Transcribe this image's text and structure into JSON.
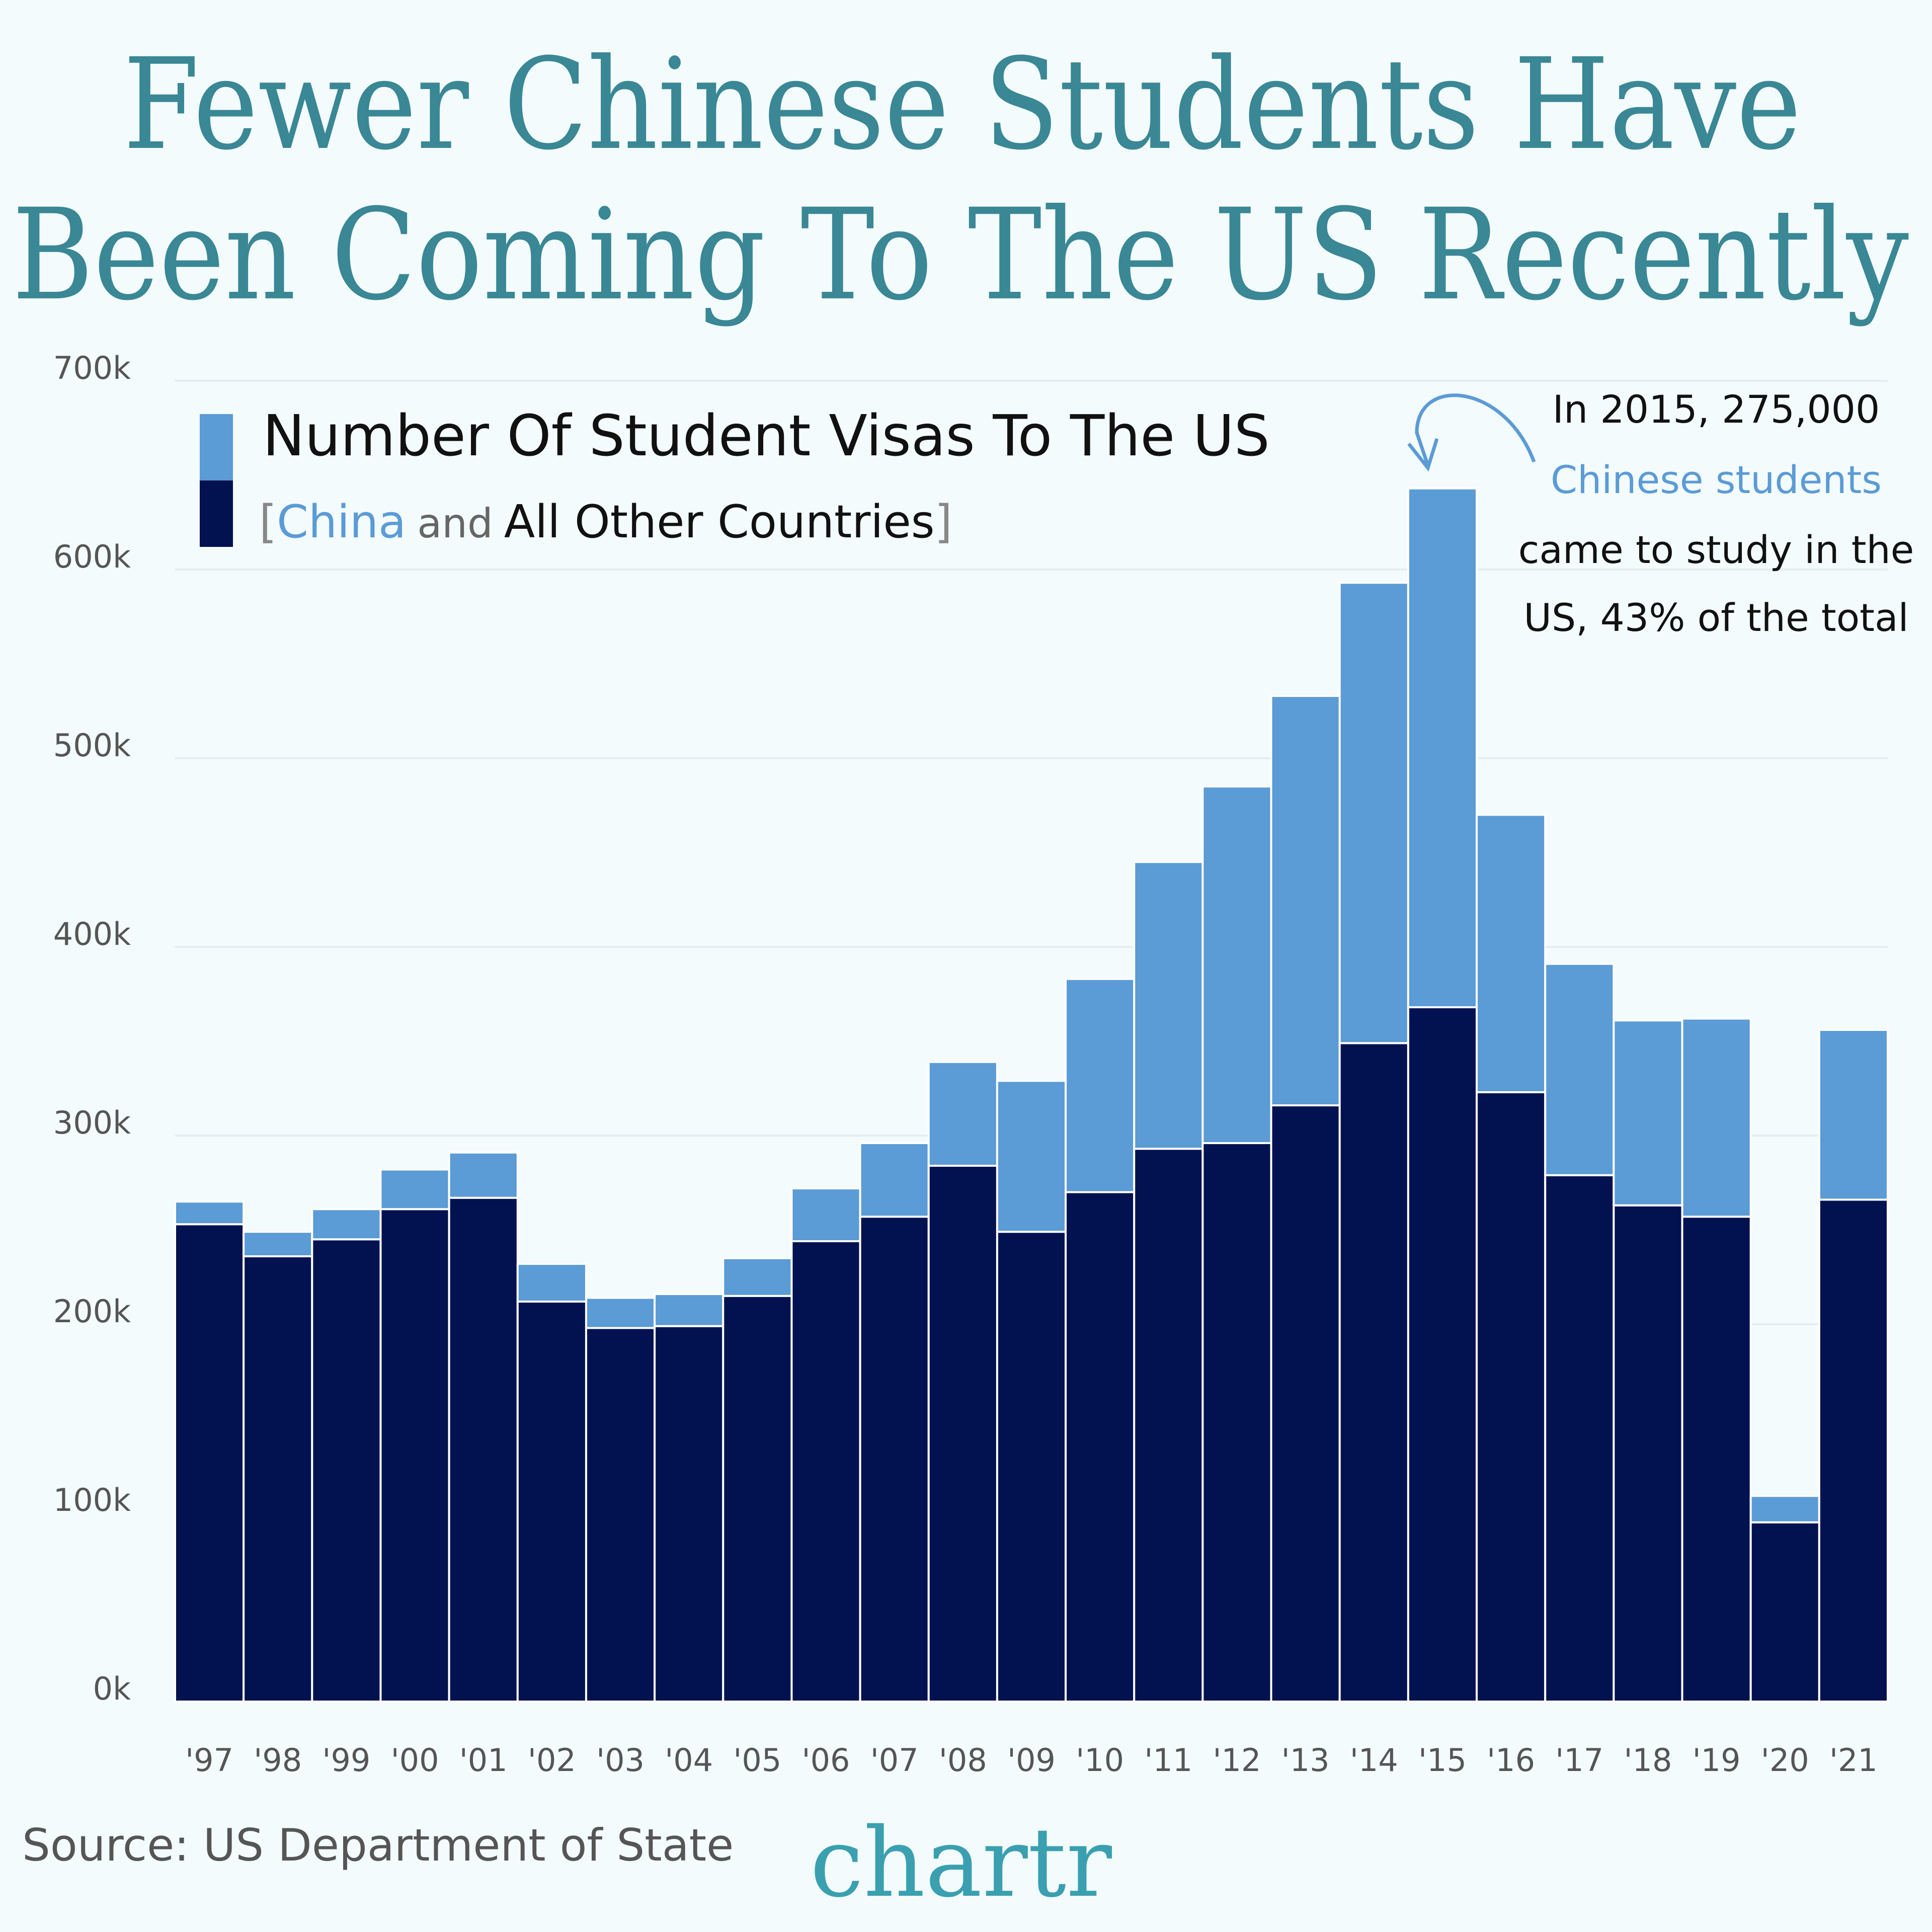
{
  "chart_data": {
    "type": "stacked-bar",
    "title": [
      "Fewer Chinese Students Have",
      "Been Coming To The US Recently"
    ],
    "legend_title": "Number Of Student Visas To The US",
    "legend_open": "[",
    "legend_and": "and",
    "legend_close": "]",
    "annotation": [
      "In 2015, 275,000",
      "Chinese students",
      "came to study in the",
      "US, 43% of the total"
    ],
    "source": "Source: US Department of State",
    "logo": "chartr",
    "categories": [
      "'97",
      "'98",
      "'99",
      "'00",
      "'01",
      "'02",
      "'03",
      "'04",
      "'05",
      "'06",
      "'07",
      "'08",
      "'09",
      "'10",
      "'11",
      "'12",
      "'13",
      "'14",
      "'15",
      "'16",
      "'17",
      "'18",
      "'19",
      "'20",
      "'21"
    ],
    "series": [
      {
        "name": "All Other Countries",
        "color": "#021250",
        "values": [
          253,
          236,
          245,
          261,
          267,
          212,
          198,
          199,
          215,
          244,
          257,
          284,
          249,
          270,
          293,
          296,
          316,
          349,
          368,
          323,
          279,
          263,
          257,
          95,
          266
        ]
      },
      {
        "name": "China",
        "color": "#5b9bd6",
        "values": [
          12,
          13,
          16,
          21,
          24,
          20,
          16,
          17,
          20,
          28,
          39,
          55,
          80,
          113,
          152,
          189,
          217,
          244,
          275,
          147,
          112,
          98,
          105,
          14,
          90
        ]
      }
    ],
    "ylim": [
      0,
      700
    ],
    "yticks": [
      {
        "value": 0,
        "label": "0k"
      },
      {
        "value": 100,
        "label": "100k"
      },
      {
        "value": 200,
        "label": "200k"
      },
      {
        "value": 300,
        "label": "300k"
      },
      {
        "value": 400,
        "label": "400k"
      },
      {
        "value": 500,
        "label": "500k"
      },
      {
        "value": 600,
        "label": "600k"
      },
      {
        "value": 700,
        "label": "700k"
      }
    ],
    "grid": true
  }
}
